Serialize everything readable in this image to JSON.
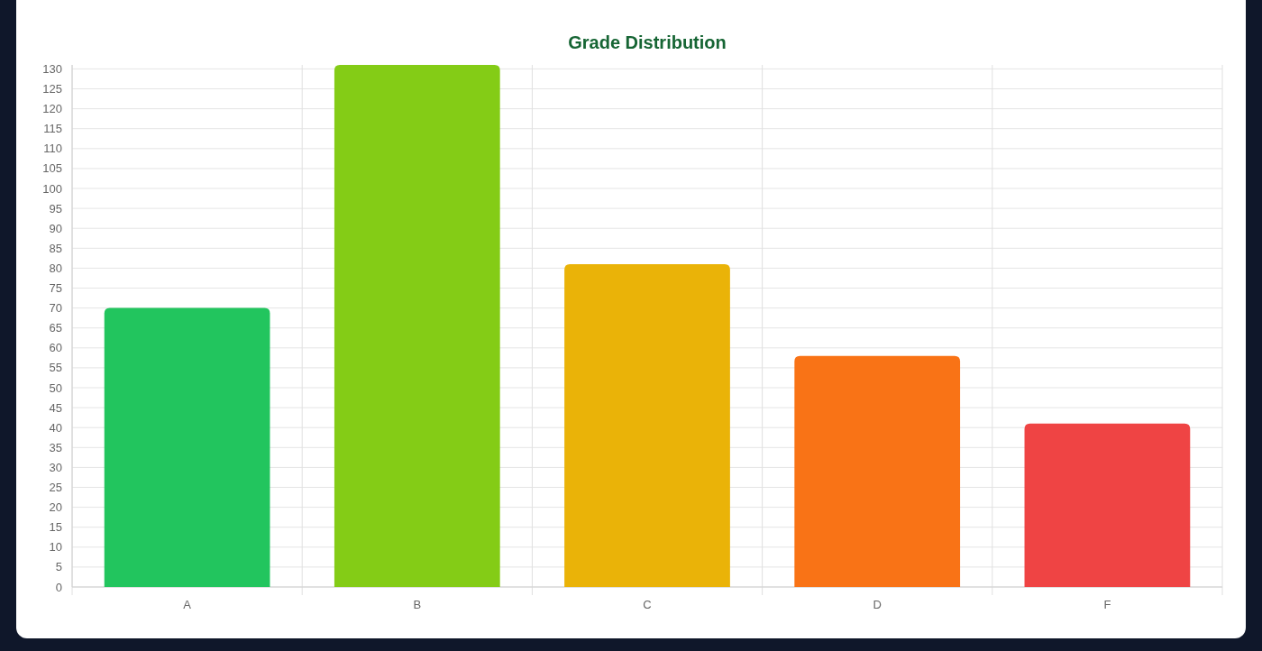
{
  "chart_data": {
    "type": "bar",
    "title": "Grade Distribution",
    "categories": [
      "A",
      "B",
      "C",
      "D",
      "F"
    ],
    "values": [
      70,
      131,
      81,
      58,
      41
    ],
    "colors": [
      "#22c55e",
      "#84cc16",
      "#eab308",
      "#f97316",
      "#ef4444"
    ],
    "ylim": [
      0,
      131
    ],
    "yticks": [
      0,
      5,
      10,
      15,
      20,
      25,
      30,
      35,
      40,
      45,
      50,
      55,
      60,
      65,
      70,
      75,
      80,
      85,
      90,
      95,
      100,
      105,
      110,
      115,
      120,
      125,
      130
    ],
    "grid": true
  }
}
